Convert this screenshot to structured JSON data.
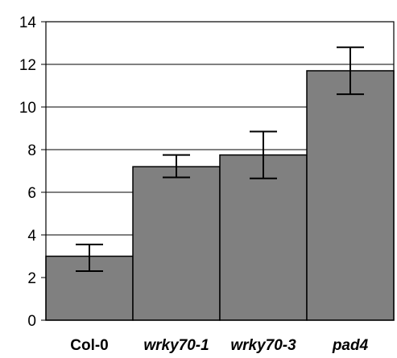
{
  "chart_data": {
    "type": "bar",
    "title": "",
    "xlabel": "",
    "ylabel": "",
    "categories": [
      "Col-0",
      "wrky70-1",
      "wrky70-3",
      "pad4"
    ],
    "category_italic": [
      false,
      true,
      true,
      true
    ],
    "values": [
      3.0,
      7.2,
      7.75,
      11.7
    ],
    "error_low": [
      2.3,
      6.7,
      6.65,
      10.6
    ],
    "error_high": [
      3.55,
      7.75,
      8.85,
      12.8
    ],
    "ylim": [
      0,
      14
    ],
    "yticks": [
      0,
      2,
      4,
      6,
      8,
      10,
      12,
      14
    ],
    "grid": true,
    "legend": "none",
    "colors": {
      "bar": "#808080",
      "bar_stroke": "#000000",
      "grid": "#000000",
      "axis": "#000000",
      "error": "#000000"
    }
  }
}
